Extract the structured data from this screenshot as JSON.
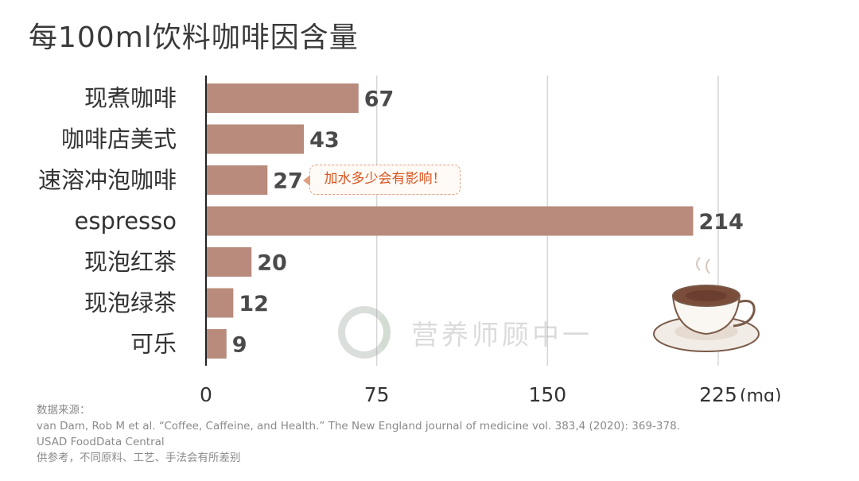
{
  "title": "每100ml饮料咖啡因含量",
  "chart_data": {
    "type": "bar",
    "orientation": "horizontal",
    "categories": [
      "现煮咖啡",
      "咖啡店美式",
      "速溶冲泡咖啡",
      "espresso",
      "现泡红茶",
      "现泡绿茶",
      "可乐"
    ],
    "values": [
      67,
      43,
      27,
      214,
      20,
      12,
      9
    ],
    "xlim": [
      0,
      225
    ],
    "xticks": [
      "0",
      "75",
      "150",
      "225"
    ],
    "unit": "(mg)",
    "grid": true,
    "bar_color": "#b88b7c",
    "annotation": {
      "text": "加水多少会有影响！",
      "category": "速溶冲泡咖啡",
      "color": "#d9541e"
    }
  },
  "sources": [
    "数据来源：",
    "van Dam, Rob M et al. “Coffee, Caffeine, and Health.” The New England journal of medicine vol. 383,4 (2020): 369-378.",
    "USAD FoodData Central",
    "供参考，不同原料、工艺、手法会有所差别"
  ],
  "watermark": {
    "text": "营养师顾中一",
    "icon": "nutrition-logo-icon"
  },
  "illustration": {
    "icon": "coffee-cup-icon"
  }
}
